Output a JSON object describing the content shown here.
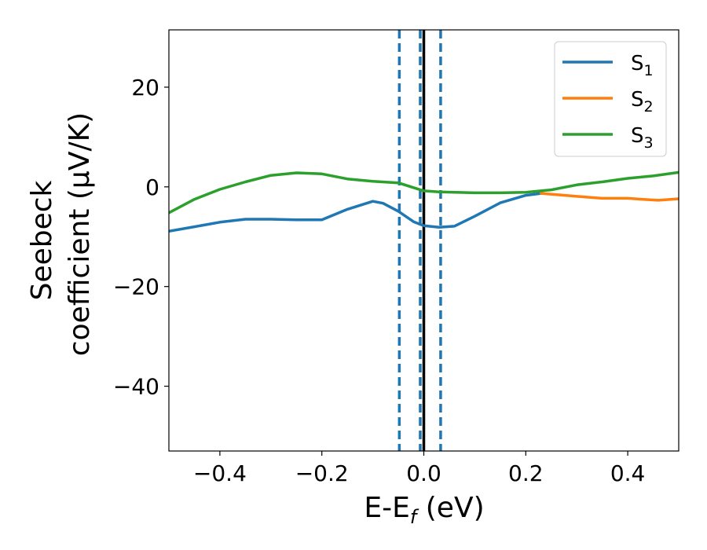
{
  "chart_data": {
    "type": "line",
    "xlabel": "E-E",
    "xlabel_sub": "f",
    "xlabel_unit": " (eV)",
    "ylabel_line1": "Seebeck",
    "ylabel_line2": "coefficient  (μV/K)",
    "xlim": [
      -0.5,
      0.5
    ],
    "ylim": [
      -53,
      31.5
    ],
    "xticks": [
      -0.4,
      -0.2,
      0.0,
      0.2,
      0.4
    ],
    "xtick_labels": [
      "−0.4",
      "−0.2",
      "0.0",
      "0.2",
      "0.4"
    ],
    "yticks": [
      20,
      0,
      -20,
      -40
    ],
    "ytick_labels": [
      "20",
      "0",
      "−20",
      "−40"
    ],
    "grid": false,
    "legend_position": "top-right",
    "series": [
      {
        "name": "S",
        "sub": "1",
        "color": "#1f77b4",
        "x": [
          -0.5,
          -0.45,
          -0.4,
          -0.35,
          -0.3,
          -0.25,
          -0.2,
          -0.15,
          -0.1,
          -0.08,
          -0.05,
          -0.02,
          0.0,
          0.03,
          0.06,
          0.1,
          0.15,
          0.2,
          0.23
        ],
        "y": [
          -8.9,
          -8.0,
          -7.1,
          -6.5,
          -6.5,
          -6.6,
          -6.6,
          -4.5,
          -2.9,
          -3.3,
          -4.9,
          -7.0,
          -7.8,
          -8.1,
          -7.9,
          -5.9,
          -3.2,
          -1.7,
          -1.3
        ]
      },
      {
        "name": "S",
        "sub": "2",
        "color": "#ff7f0e",
        "x": [
          0.23,
          0.3,
          0.35,
          0.4,
          0.43,
          0.46,
          0.5
        ],
        "y": [
          -1.3,
          -1.9,
          -2.3,
          -2.3,
          -2.5,
          -2.7,
          -2.4
        ]
      },
      {
        "name": "S",
        "sub": "3",
        "color": "#2ca02c",
        "x": [
          -0.5,
          -0.45,
          -0.4,
          -0.35,
          -0.3,
          -0.25,
          -0.2,
          -0.15,
          -0.1,
          -0.05,
          0.0,
          0.03,
          0.1,
          0.15,
          0.2,
          0.25,
          0.3,
          0.35,
          0.4,
          0.45,
          0.5
        ],
        "y": [
          -5.2,
          -2.5,
          -0.5,
          1.0,
          2.3,
          2.8,
          2.6,
          1.6,
          1.1,
          0.8,
          -0.8,
          -1.0,
          -1.2,
          -1.2,
          -1.1,
          -0.6,
          0.4,
          1.0,
          1.7,
          2.2,
          2.9
        ]
      }
    ],
    "vlines": [
      {
        "x": -0.048,
        "style": "dashed",
        "color": "#1f77b4"
      },
      {
        "x": -0.007,
        "style": "dashed",
        "color": "#1f77b4"
      },
      {
        "x": 0.033,
        "style": "dashed",
        "color": "#1f77b4"
      },
      {
        "x": 0.0,
        "style": "solid",
        "color": "#000000"
      }
    ]
  }
}
